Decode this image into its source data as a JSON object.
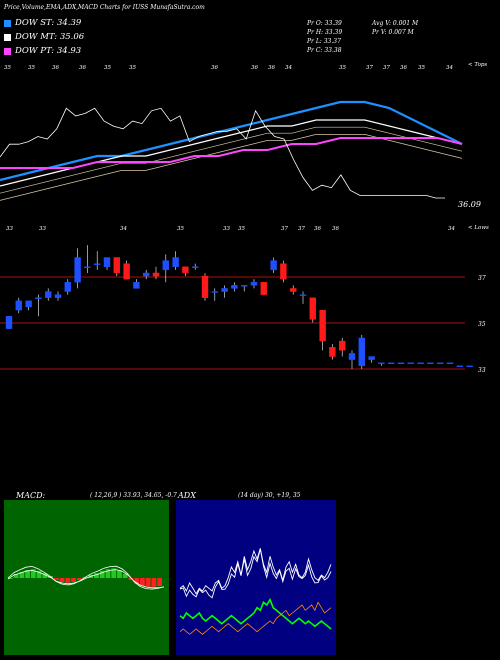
{
  "header": {
    "title": "Price,Volume,EMA,ADX,MACD Charts for IUSS MunafaSutra.com"
  },
  "legend": [
    {
      "label": "DOW ST: 34.39",
      "color": "#1e90ff"
    },
    {
      "label": "DOW MT: 35.06",
      "color": "#ffffff"
    },
    {
      "label": "DOW PT: 34.93",
      "color": "#ff44ff"
    }
  ],
  "info": {
    "pr_o": "Pr  O: 33.39",
    "pr_h": "Pr  H: 33.39",
    "pr_l": "Pr  L: 33.37",
    "pr_c": "Pr  C: 33.38",
    "avg_v": "Avg V: 0.001 M",
    "pr_v": "Pr  V: 0.007 M"
  },
  "top_panel": {
    "corner_label": "< Tops",
    "price_label": "36.09",
    "top_tick_labels": [
      "35",
      "35",
      "36",
      "36",
      "35",
      "35",
      "36",
      "36",
      "36",
      "34",
      "35",
      "37",
      "37",
      "36",
      "35",
      "34"
    ],
    "bottom_tick_labels": [
      "33",
      "33",
      "34",
      "35",
      "33",
      "35",
      "37",
      "37",
      "36",
      "36",
      "34"
    ],
    "colors": {
      "st": "#1e90ff",
      "mt": "#ffffff",
      "pt": "#ff44ff",
      "price": "#ffffff"
    }
  },
  "candle_panel": {
    "corner_label": "< Lows",
    "price_labels": [
      "37",
      "35",
      "33"
    ],
    "colors": {
      "up": "#1e50ff",
      "down": "#ff1a1a",
      "grid": "#aa1111"
    }
  },
  "macd": {
    "title": "MACD:",
    "params": "( 12,26,9 ) 33.93,  34.65,  -0.7",
    "colors": {
      "bg": "#006400",
      "pos": "#22c922",
      "neg": "#ff2020",
      "line": "#ffffff"
    }
  },
  "adx": {
    "title": "ADX",
    "params": "(14  day) 30,  +19,  35",
    "colors": {
      "bg": "#000080",
      "adx": "#ffffff",
      "plus": "#00ff00",
      "minus": "#ff8c00"
    }
  },
  "chart_data": [
    {
      "type": "line",
      "title": "Price,Volume,EMA,ADX,MACD Charts for IUSS MunafaSutra.com",
      "series": [
        {
          "name": "DOW ST",
          "values": [
            35.4,
            35.5,
            35.6,
            35.7,
            35.8,
            35.8,
            35.9,
            36.0,
            36.1,
            36.2,
            36.3,
            36.4,
            36.5,
            36.6,
            36.7,
            36.7,
            36.6,
            36.4,
            36.2,
            36.0
          ]
        },
        {
          "name": "DOW MT",
          "values": [
            35.3,
            35.4,
            35.5,
            35.6,
            35.7,
            35.8,
            35.8,
            35.9,
            36.0,
            36.1,
            36.2,
            36.3,
            36.3,
            36.4,
            36.4,
            36.4,
            36.3,
            36.2,
            36.1,
            36.0
          ]
        },
        {
          "name": "DOW PT",
          "values": [
            35.6,
            35.6,
            35.6,
            35.6,
            35.7,
            35.7,
            35.7,
            35.7,
            35.8,
            35.8,
            35.9,
            35.9,
            36.0,
            36.0,
            36.1,
            36.1,
            36.1,
            36.1,
            36.1,
            36.0
          ]
        }
      ]
    },
    {
      "type": "bar",
      "subtype": "candlestick",
      "ylabel_ticks": [
        "37",
        "35",
        "33"
      ],
      "candles": [
        {
          "o": 33.6,
          "c": 34.0,
          "h": 34.0,
          "l": 33.6
        },
        {
          "o": 34.2,
          "c": 34.5,
          "h": 34.6,
          "l": 34.1
        },
        {
          "o": 34.3,
          "c": 34.5,
          "h": 34.5,
          "l": 34.2
        },
        {
          "o": 34.6,
          "c": 34.6,
          "h": 34.7,
          "l": 34.0
        },
        {
          "o": 34.6,
          "c": 34.8,
          "h": 34.9,
          "l": 34.5
        },
        {
          "o": 34.6,
          "c": 34.7,
          "h": 34.8,
          "l": 34.5
        },
        {
          "o": 34.8,
          "c": 35.1,
          "h": 35.2,
          "l": 34.7
        },
        {
          "o": 35.1,
          "c": 35.9,
          "h": 36.2,
          "l": 34.9
        },
        {
          "o": 35.6,
          "c": 35.6,
          "h": 36.3,
          "l": 35.4
        },
        {
          "o": 35.7,
          "c": 35.7,
          "h": 36.1,
          "l": 35.5
        },
        {
          "o": 35.6,
          "c": 35.9,
          "h": 35.9,
          "l": 35.5
        },
        {
          "o": 35.9,
          "c": 35.4,
          "h": 35.9,
          "l": 35.3
        },
        {
          "o": 35.7,
          "c": 35.2,
          "h": 35.8,
          "l": 35.2
        },
        {
          "o": 34.9,
          "c": 35.1,
          "h": 35.2,
          "l": 34.9
        },
        {
          "o": 35.3,
          "c": 35.4,
          "h": 35.5,
          "l": 35.2
        },
        {
          "o": 35.4,
          "c": 35.3,
          "h": 35.6,
          "l": 35.2
        },
        {
          "o": 35.5,
          "c": 35.8,
          "h": 36.0,
          "l": 35.1
        },
        {
          "o": 35.6,
          "c": 35.9,
          "h": 36.1,
          "l": 35.5
        },
        {
          "o": 35.6,
          "c": 35.4,
          "h": 35.6,
          "l": 35.3
        },
        {
          "o": 35.6,
          "c": 35.6,
          "h": 35.7,
          "l": 35.5
        },
        {
          "o": 35.3,
          "c": 34.6,
          "h": 35.4,
          "l": 34.5
        },
        {
          "o": 34.8,
          "c": 34.8,
          "h": 34.9,
          "l": 34.5
        },
        {
          "o": 34.8,
          "c": 34.9,
          "h": 35.0,
          "l": 34.6
        },
        {
          "o": 34.9,
          "c": 35.0,
          "h": 35.1,
          "l": 34.8
        },
        {
          "o": 35.0,
          "c": 35.0,
          "h": 35.0,
          "l": 34.8
        },
        {
          "o": 35.0,
          "c": 35.1,
          "h": 35.2,
          "l": 34.9
        },
        {
          "o": 35.1,
          "c": 34.7,
          "h": 35.1,
          "l": 34.7
        },
        {
          "o": 35.5,
          "c": 35.8,
          "h": 35.9,
          "l": 35.4
        },
        {
          "o": 35.7,
          "c": 35.2,
          "h": 35.8,
          "l": 35.1
        },
        {
          "o": 34.9,
          "c": 34.8,
          "h": 35.0,
          "l": 34.7
        },
        {
          "o": 34.7,
          "c": 34.7,
          "h": 34.8,
          "l": 34.4
        },
        {
          "o": 34.6,
          "c": 33.9,
          "h": 34.6,
          "l": 33.8
        },
        {
          "o": 34.2,
          "c": 33.2,
          "h": 34.2,
          "l": 32.9
        },
        {
          "o": 33.0,
          "c": 32.7,
          "h": 33.1,
          "l": 32.6
        },
        {
          "o": 33.2,
          "c": 32.9,
          "h": 33.3,
          "l": 32.7
        },
        {
          "o": 32.6,
          "c": 32.8,
          "h": 32.9,
          "l": 32.3
        },
        {
          "o": 32.4,
          "c": 33.3,
          "h": 33.4,
          "l": 32.3
        },
        {
          "o": 32.6,
          "c": 32.7,
          "h": 32.7,
          "l": 32.5
        },
        {
          "o": 32.5,
          "c": 32.5,
          "h": 32.5,
          "l": 32.4
        },
        {
          "o": 32.5,
          "c": 32.5,
          "h": 32.5,
          "l": 32.5
        },
        {
          "o": 32.5,
          "c": 32.5,
          "h": 32.5,
          "l": 32.5
        },
        {
          "o": 32.5,
          "c": 32.5,
          "h": 32.5,
          "l": 32.5
        },
        {
          "o": 32.5,
          "c": 32.5,
          "h": 32.5,
          "l": 32.5
        },
        {
          "o": 32.5,
          "c": 32.5,
          "h": 32.5,
          "l": 32.5
        },
        {
          "o": 32.5,
          "c": 32.5,
          "h": 32.5,
          "l": 32.5
        },
        {
          "o": 32.5,
          "c": 32.5,
          "h": 32.5,
          "l": 32.5
        },
        {
          "o": 32.4,
          "c": 32.4,
          "h": 32.4,
          "l": 32.4
        },
        {
          "o": 32.4,
          "c": 32.4,
          "h": 32.4,
          "l": 32.4
        }
      ]
    },
    {
      "type": "bar",
      "title": "MACD",
      "histogram": [
        0.0,
        0.1,
        0.15,
        0.2,
        0.22,
        0.18,
        0.12,
        0.05,
        -0.05,
        -0.1,
        -0.12,
        -0.1,
        -0.05,
        0.02,
        0.08,
        0.12,
        0.18,
        0.22,
        0.24,
        0.2,
        0.1,
        -0.05,
        -0.15,
        -0.2,
        -0.22,
        -0.22,
        -0.2
      ]
    },
    {
      "type": "line",
      "title": "ADX",
      "series": [
        {
          "name": "ADX",
          "values": [
            30,
            31,
            29,
            32,
            30,
            28,
            30,
            29,
            31,
            30,
            29,
            32,
            33,
            30,
            31,
            34,
            38,
            36,
            40,
            35,
            42,
            37,
            40,
            44,
            41,
            45,
            39,
            36,
            42,
            38,
            35,
            37,
            33,
            38,
            40,
            36,
            39,
            35,
            34,
            36,
            41,
            37,
            34,
            33,
            35,
            34,
            36,
            39
          ]
        },
        {
          "name": "+DI",
          "values": [
            19,
            18,
            20,
            19,
            18,
            19,
            20,
            18,
            17,
            18,
            19,
            18,
            17,
            16,
            17,
            18,
            19,
            18,
            17,
            16,
            17,
            18,
            19,
            20,
            22,
            21,
            24,
            23,
            25,
            22,
            21,
            20,
            19,
            18,
            17,
            16,
            17,
            18,
            17,
            16,
            17,
            16,
            15,
            16,
            17,
            16,
            15,
            14
          ]
        },
        {
          "name": "-DI",
          "values": [
            13,
            14,
            13,
            12,
            13,
            14,
            13,
            12,
            13,
            14,
            15,
            14,
            13,
            14,
            15,
            16,
            15,
            14,
            13,
            14,
            15,
            16,
            15,
            14,
            13,
            14,
            15,
            16,
            17,
            16,
            18,
            19,
            20,
            21,
            19,
            20,
            21,
            22,
            23,
            21,
            22,
            23,
            21,
            24,
            22,
            20,
            21,
            22
          ]
        }
      ]
    }
  ]
}
